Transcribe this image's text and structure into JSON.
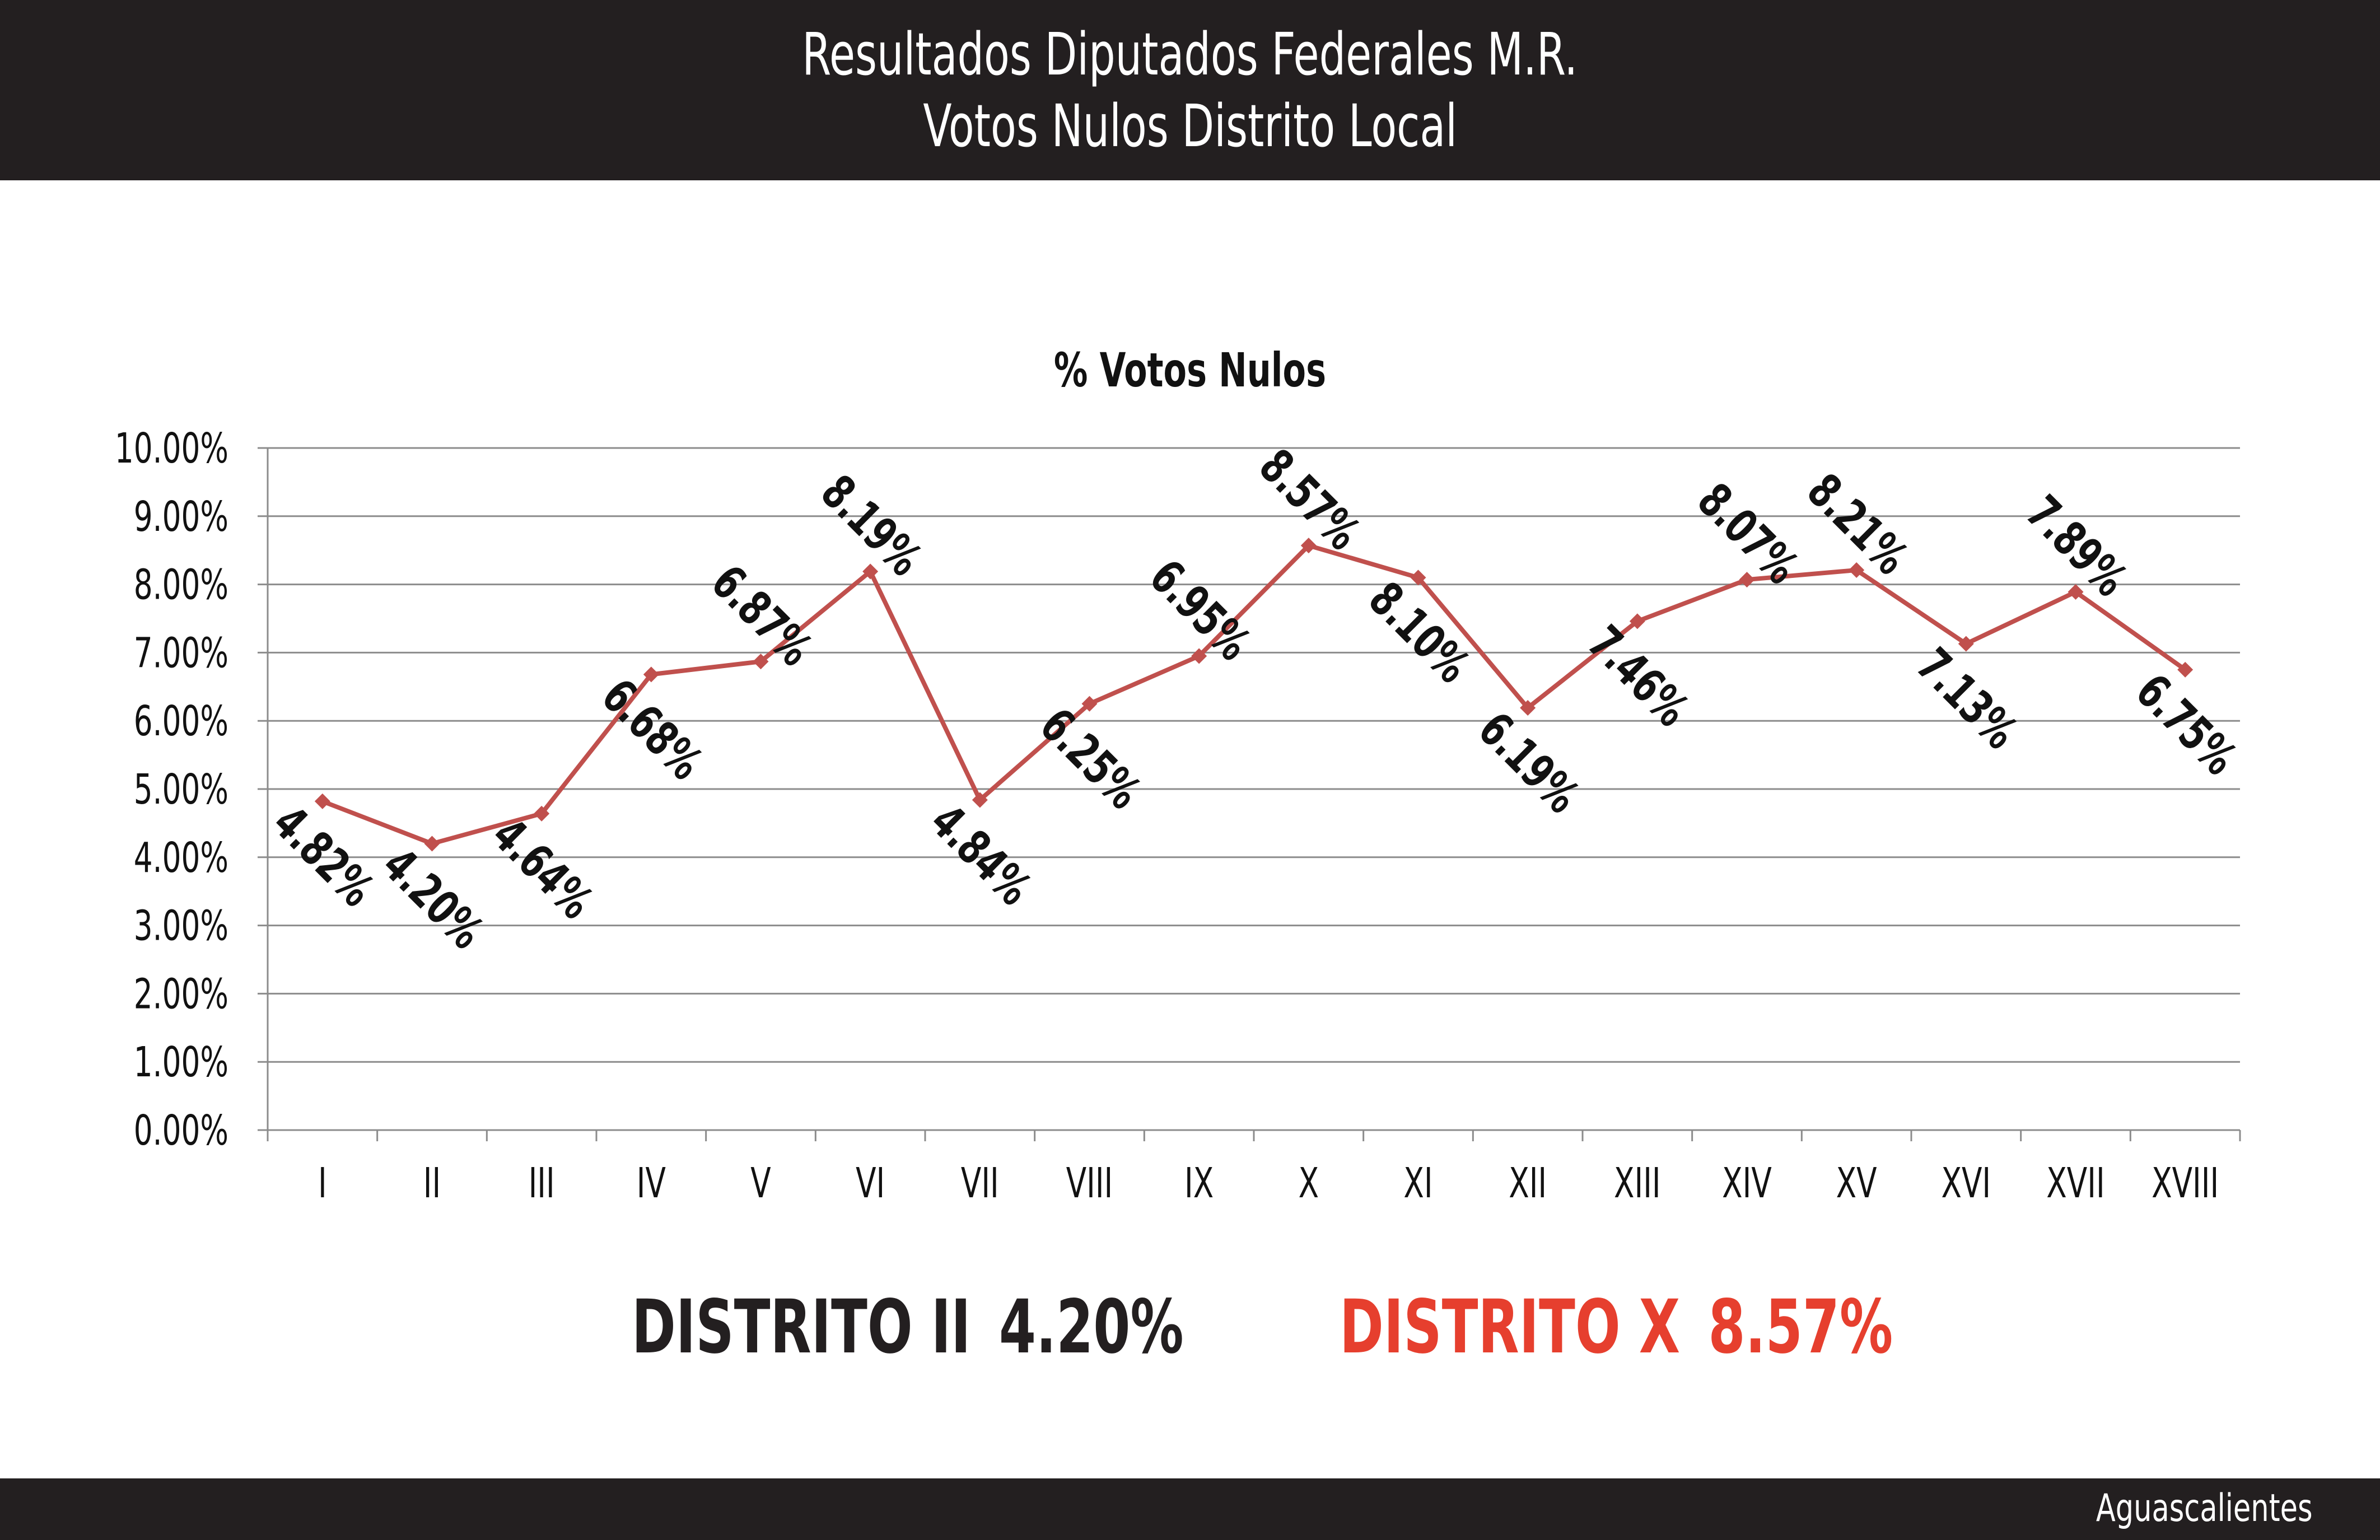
{
  "header": {
    "line1": "Resultados Diputados Federales M.R.",
    "line2": "Votos Nulos Distrito Local"
  },
  "footer": {
    "state": "Aguascalientes"
  },
  "callouts": {
    "min": {
      "label": "DISTRITO II",
      "value": "4.20%"
    },
    "max": {
      "label": "DISTRITO X",
      "value": "8.57%"
    }
  },
  "colors": {
    "line": "#c0504d",
    "header_bg": "#231f20",
    "max_callout": "#e63f2e"
  },
  "chart_data": {
    "type": "line",
    "title": "% Votos Nulos",
    "categories": [
      "I",
      "II",
      "III",
      "IV",
      "V",
      "VI",
      "VII",
      "VIII",
      "IX",
      "X",
      "XI",
      "XII",
      "XIII",
      "XIV",
      "XV",
      "XVI",
      "XVII",
      "XVIII"
    ],
    "values": [
      4.82,
      4.2,
      4.64,
      6.68,
      6.87,
      8.19,
      4.84,
      6.25,
      6.95,
      8.57,
      8.1,
      6.19,
      7.46,
      8.07,
      8.21,
      7.13,
      7.89,
      6.75
    ],
    "data_labels": [
      "4.82%",
      "4.20%",
      "4.64%",
      "6.68%",
      "6.87%",
      "8.19%",
      "4.84%",
      "6.25%",
      "6.95%",
      "8.57%",
      "8.10%",
      "6.19%",
      "7.46%",
      "8.07%",
      "8.21%",
      "7.13%",
      "7.89%",
      "6.75%"
    ],
    "yticks": [
      "0.00%",
      "1.00%",
      "2.00%",
      "3.00%",
      "4.00%",
      "5.00%",
      "6.00%",
      "7.00%",
      "8.00%",
      "9.00%",
      "10.00%"
    ],
    "ylim": [
      0,
      10
    ],
    "grid": true,
    "marker": "diamond",
    "legend": "none"
  }
}
